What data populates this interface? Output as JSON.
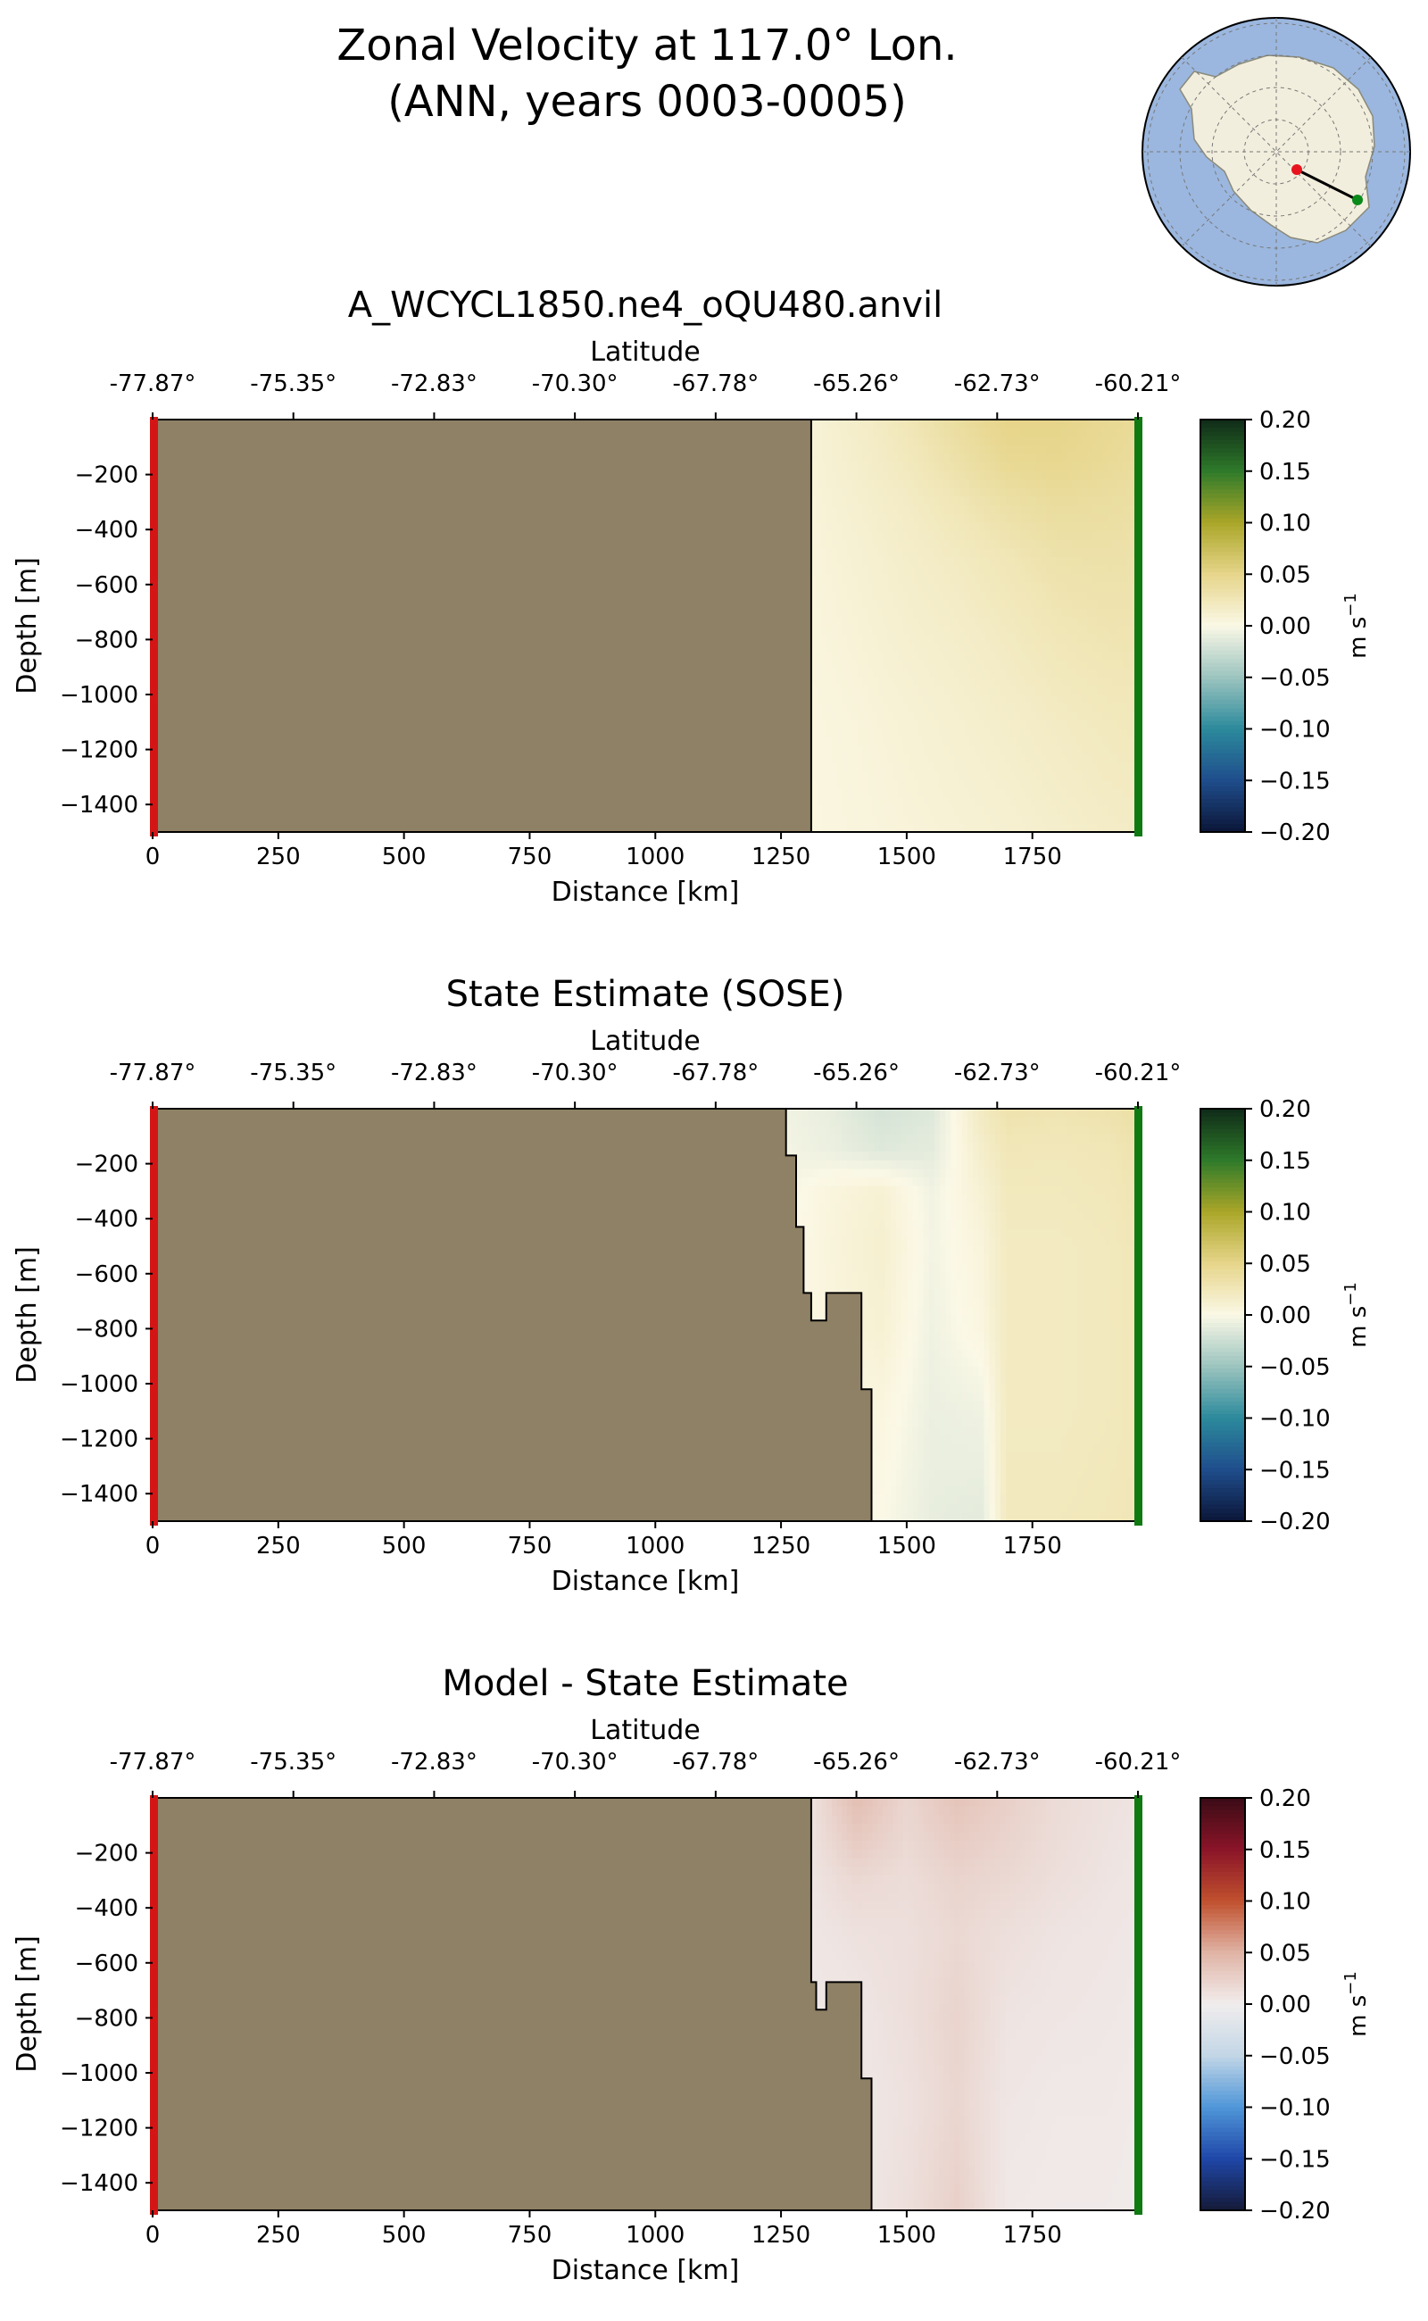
{
  "figure": {
    "title_line1": "Zonal Velocity at 117.0° Lon.",
    "title_line2": "(ANN, years 0003-0005)"
  },
  "inset_map": {
    "ocean_color": "#9bb7df",
    "land_color": "#f2eedd",
    "start_marker_color": "#e8141d",
    "end_marker_color": "#0a8a1a"
  },
  "chart_data": [
    {
      "type": "heatmap",
      "title": "A_WCYCL1850.ne4_oQU480.anvil",
      "xlabel": "Distance [km]",
      "ylabel": "Depth [m]",
      "top_xlabel": "Latitude",
      "colorbar_label": "m s",
      "colorbar_label_exp": "−1",
      "colormap": "speed-like (navy-teal-cream-olive-green)",
      "xlim": [
        0,
        1960
      ],
      "ylim": [
        -1500,
        0
      ],
      "x_ticks": [
        0,
        250,
        500,
        750,
        1000,
        1250,
        1500,
        1750
      ],
      "x_tick_labels": [
        "0",
        "250",
        "500",
        "750",
        "1000",
        "1250",
        "1500",
        "1750"
      ],
      "y_ticks": [
        -200,
        -400,
        -600,
        -800,
        -1000,
        -1200,
        -1400
      ],
      "y_tick_labels": [
        "−200",
        "−400",
        "−600",
        "−800",
        "−1000",
        "−1200",
        "−1400"
      ],
      "lat_ticks": [
        0,
        280,
        560,
        840,
        1120,
        1400,
        1680,
        1960
      ],
      "lat_tick_labels": [
        "-77.87°",
        "-75.35°",
        "-72.83°",
        "-70.30°",
        "-67.78°",
        "-65.26°",
        "-62.73°",
        "-60.21°"
      ],
      "colorbar_ticks": [
        0.2,
        0.15,
        0.1,
        0.05,
        0.0,
        -0.05,
        -0.1,
        -0.15,
        -0.2
      ],
      "colorbar_tick_labels": [
        "0.20",
        "0.15",
        "0.10",
        "0.05",
        "0.00",
        "−0.05",
        "−0.10",
        "−0.15",
        "−0.20"
      ],
      "vmin": -0.2,
      "vmax": 0.2,
      "land_boundary": [
        [
          1310,
          0
        ],
        [
          1310,
          -1500
        ]
      ],
      "x": [
        1310,
        1400,
        1500,
        1600,
        1700,
        1800,
        1900,
        1960
      ],
      "depth": [
        -10,
        -150,
        -300,
        -500,
        -800,
        -1100,
        -1500
      ],
      "values": [
        [
          0.008,
          0.015,
          0.025,
          0.038,
          0.05,
          0.05,
          0.045,
          0.042
        ],
        [
          0.008,
          0.014,
          0.022,
          0.033,
          0.045,
          0.047,
          0.043,
          0.04
        ],
        [
          0.007,
          0.012,
          0.018,
          0.026,
          0.035,
          0.04,
          0.038,
          0.036
        ],
        [
          0.006,
          0.01,
          0.015,
          0.02,
          0.026,
          0.032,
          0.033,
          0.032
        ],
        [
          0.005,
          0.008,
          0.012,
          0.015,
          0.02,
          0.025,
          0.028,
          0.028
        ],
        [
          0.004,
          0.006,
          0.009,
          0.012,
          0.015,
          0.019,
          0.022,
          0.023
        ],
        [
          0.003,
          0.005,
          0.007,
          0.009,
          0.011,
          0.014,
          0.017,
          0.018
        ]
      ]
    },
    {
      "type": "heatmap",
      "title": "State Estimate (SOSE)",
      "xlabel": "Distance [km]",
      "ylabel": "Depth [m]",
      "top_xlabel": "Latitude",
      "colorbar_label": "m s",
      "colorbar_label_exp": "−1",
      "colormap": "speed-like (navy-teal-cream-olive-green)",
      "xlim": [
        0,
        1960
      ],
      "ylim": [
        -1500,
        0
      ],
      "x_ticks": [
        0,
        250,
        500,
        750,
        1000,
        1250,
        1500,
        1750
      ],
      "x_tick_labels": [
        "0",
        "250",
        "500",
        "750",
        "1000",
        "1250",
        "1500",
        "1750"
      ],
      "y_ticks": [
        -200,
        -400,
        -600,
        -800,
        -1000,
        -1200,
        -1400
      ],
      "y_tick_labels": [
        "−200",
        "−400",
        "−600",
        "−800",
        "−1000",
        "−1200",
        "−1400"
      ],
      "lat_ticks": [
        0,
        280,
        560,
        840,
        1120,
        1400,
        1680,
        1960
      ],
      "lat_tick_labels": [
        "-77.87°",
        "-75.35°",
        "-72.83°",
        "-70.30°",
        "-67.78°",
        "-65.26°",
        "-62.73°",
        "-60.21°"
      ],
      "colorbar_ticks": [
        0.2,
        0.15,
        0.1,
        0.05,
        0.0,
        -0.05,
        -0.1,
        -0.15,
        -0.2
      ],
      "colorbar_tick_labels": [
        "0.20",
        "0.15",
        "0.10",
        "0.05",
        "0.00",
        "−0.05",
        "−0.10",
        "−0.15",
        "−0.20"
      ],
      "vmin": -0.2,
      "vmax": 0.2,
      "land_boundary": [
        [
          1260,
          0
        ],
        [
          1260,
          -170
        ],
        [
          1280,
          -170
        ],
        [
          1280,
          -430
        ],
        [
          1295,
          -430
        ],
        [
          1295,
          -670
        ],
        [
          1310,
          -670
        ],
        [
          1310,
          -770
        ],
        [
          1340,
          -770
        ],
        [
          1340,
          -670
        ],
        [
          1410,
          -670
        ],
        [
          1410,
          -1020
        ],
        [
          1430,
          -1020
        ],
        [
          1430,
          -1500
        ]
      ],
      "x": [
        1260,
        1350,
        1450,
        1550,
        1650,
        1700,
        1800,
        1900,
        1960
      ],
      "depth": [
        -10,
        -150,
        -300,
        -500,
        -800,
        -1100,
        -1500
      ],
      "values": [
        [
          -0.005,
          -0.01,
          -0.02,
          -0.015,
          0.02,
          0.03,
          0.028,
          0.03,
          0.035
        ],
        [
          -0.004,
          -0.008,
          -0.015,
          -0.012,
          0.015,
          0.025,
          0.024,
          0.026,
          0.03
        ],
        [
          -0.003,
          0.005,
          0.01,
          -0.005,
          0.01,
          0.022,
          0.022,
          0.024,
          0.028
        ],
        [
          -0.002,
          0.006,
          0.012,
          -0.004,
          0.006,
          0.02,
          0.02,
          0.022,
          0.026
        ],
        [
          0.0,
          0.005,
          0.01,
          -0.006,
          0.004,
          0.02,
          0.02,
          0.022,
          0.025
        ],
        [
          0.0,
          0.0,
          0.004,
          -0.008,
          -0.006,
          0.02,
          0.02,
          0.022,
          0.025
        ],
        [
          0.0,
          0.0,
          0.0,
          -0.01,
          -0.012,
          0.022,
          0.022,
          0.024,
          0.026
        ]
      ]
    },
    {
      "type": "heatmap",
      "title": "Model - State Estimate",
      "xlabel": "Distance [km]",
      "ylabel": "Depth [m]",
      "top_xlabel": "Latitude",
      "colorbar_label": "m s",
      "colorbar_label_exp": "−1",
      "colormap": "balance (navy-blue-white-red-maroon)",
      "xlim": [
        0,
        1960
      ],
      "ylim": [
        -1500,
        0
      ],
      "x_ticks": [
        0,
        250,
        500,
        750,
        1000,
        1250,
        1500,
        1750
      ],
      "x_tick_labels": [
        "0",
        "250",
        "500",
        "750",
        "1000",
        "1250",
        "1500",
        "1750"
      ],
      "y_ticks": [
        -200,
        -400,
        -600,
        -800,
        -1000,
        -1200,
        -1400
      ],
      "y_tick_labels": [
        "−200",
        "−400",
        "−600",
        "−800",
        "−1000",
        "−1200",
        "−1400"
      ],
      "lat_ticks": [
        0,
        280,
        560,
        840,
        1120,
        1400,
        1680,
        1960
      ],
      "lat_tick_labels": [
        "-77.87°",
        "-75.35°",
        "-72.83°",
        "-70.30°",
        "-67.78°",
        "-65.26°",
        "-62.73°",
        "-60.21°"
      ],
      "colorbar_ticks": [
        0.2,
        0.15,
        0.1,
        0.05,
        0.0,
        -0.05,
        -0.1,
        -0.15,
        -0.2
      ],
      "colorbar_tick_labels": [
        "0.20",
        "0.15",
        "0.10",
        "0.05",
        "0.00",
        "−0.05",
        "−0.10",
        "−0.15",
        "−0.20"
      ],
      "vmin": -0.2,
      "vmax": 0.2,
      "land_boundary": [
        [
          1310,
          0
        ],
        [
          1310,
          -670
        ],
        [
          1320,
          -670
        ],
        [
          1320,
          -770
        ],
        [
          1340,
          -770
        ],
        [
          1340,
          -670
        ],
        [
          1410,
          -670
        ],
        [
          1410,
          -1020
        ],
        [
          1430,
          -1020
        ],
        [
          1430,
          -1500
        ]
      ],
      "x": [
        1310,
        1400,
        1500,
        1600,
        1700,
        1800,
        1900,
        1960
      ],
      "depth": [
        -10,
        -150,
        -300,
        -500,
        -800,
        -1100,
        -1500
      ],
      "values": [
        [
          0.01,
          0.04,
          0.02,
          0.035,
          0.025,
          0.015,
          0.01,
          0.008
        ],
        [
          0.01,
          0.03,
          0.018,
          0.028,
          0.022,
          0.014,
          0.009,
          0.007
        ],
        [
          0.008,
          0.018,
          0.014,
          0.022,
          0.018,
          0.012,
          0.008,
          0.006
        ],
        [
          0.006,
          0.01,
          0.012,
          0.018,
          0.012,
          0.008,
          0.006,
          0.005
        ],
        [
          0.004,
          0.006,
          0.012,
          0.022,
          0.008,
          0.006,
          0.005,
          0.004
        ],
        [
          0.003,
          0.005,
          0.01,
          0.02,
          0.006,
          0.004,
          0.004,
          0.003
        ],
        [
          0.002,
          0.004,
          0.012,
          0.025,
          0.004,
          0.003,
          0.003,
          0.002
        ]
      ]
    }
  ]
}
